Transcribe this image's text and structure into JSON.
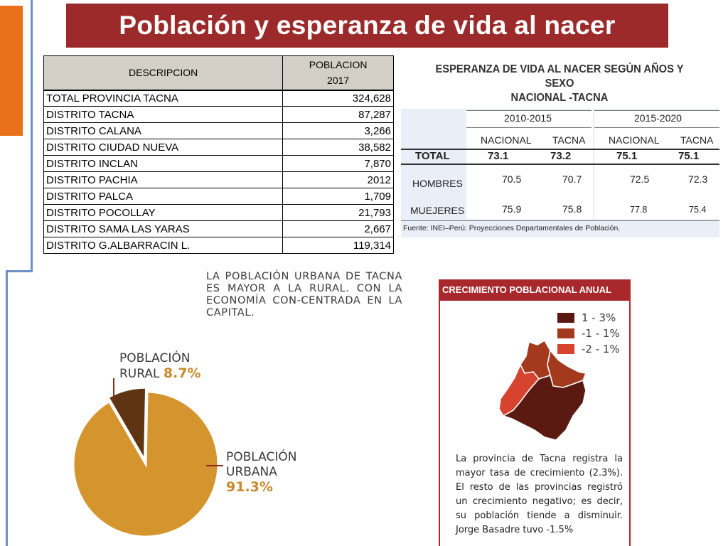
{
  "title": "Población y esperanza de vida al nacer",
  "population_table": {
    "header_desc": "DESCRIPCION",
    "header_value_line1": "POBLACION",
    "header_value_line2": "2017",
    "rows": [
      {
        "label": "TOTAL PROVINCIA  TACNA",
        "value": "324,628"
      },
      {
        "label": "DISTRITO  TACNA",
        "value": "87,287"
      },
      {
        "label": "DISTRITO CALANA",
        "value": "3,266"
      },
      {
        "label": "DISTRITO CIUDAD NUEVA",
        "value": "38,582"
      },
      {
        "label": "DISTRITO INCLAN",
        "value": "7,870"
      },
      {
        "label": "DISTRITO PACHIA",
        "value": "2012"
      },
      {
        "label": "DISTRITO PALCA",
        "value": "1,709"
      },
      {
        "label": "DISTRITO  POCOLLAY",
        "value": "21,793"
      },
      {
        "label": "DISTRITO SAMA LAS YARAS",
        "value": "2,667"
      },
      {
        "label": "DISTRITO G.ALBARRACIN L.",
        "value": "119,314"
      }
    ]
  },
  "life_expectancy": {
    "title_line1": "ESPERANZA DE VIDA AL NACER SEGÚN AÑOS Y SEXO",
    "title_line2": "NACIONAL -TACNA",
    "period1": "2010-2015",
    "period2": "2015-2020",
    "col_nacional": "NACIONAL",
    "col_tacna": "TACNA",
    "rows": [
      {
        "label": "TOTAL",
        "values": [
          "73.1",
          "73.2",
          "75.1",
          "75.1"
        ]
      },
      {
        "label": "HOMBRES",
        "values": [
          "70.5",
          "70.7",
          "72.5",
          "72.3"
        ]
      },
      {
        "label": "MUEJERES",
        "values": [
          "75.9",
          "75.8",
          "77.8",
          "75.4"
        ]
      }
    ],
    "source": "Fuente: INEI–Perú: Proyecciones Departamentales de Población."
  },
  "urban_text": "LA POBLACIÓN URBANA DE TACNA ES MAYOR A LA RURAL. CON LA ECONOMÍA CON-CENTRADA EN LA CAPITAL.",
  "pie": {
    "rural_label_line1": "POBLACIÓN",
    "rural_label_line2": "RURAL",
    "rural_pct": "8.7%",
    "rural_value": 8.7,
    "urban_label_line1": "POBLACIÓN",
    "urban_label_line2": "URBANA",
    "urban_pct": "91.3%",
    "urban_value": 91.3,
    "colors": {
      "urban": "#d4952e",
      "rural": "#5e3412",
      "line": "#8b2a1a"
    }
  },
  "growth": {
    "header": "CRECIMIENTO POBLACIONAL ANUAL",
    "legend": [
      {
        "label": "1 - 3%",
        "color": "#5a1a12"
      },
      {
        "label": "-1 - 1%",
        "color": "#a33a1e"
      },
      {
        "label": "-2 - 1%",
        "color": "#d6432e"
      }
    ],
    "description": "La provincia de Tacna registra la mayor tasa de crecimiento (2.3%). El resto de las provincias registró un crecimiento negativo; es decir, su población tiende a disminuir. Jorge Basadre tuvo -1.5%"
  }
}
